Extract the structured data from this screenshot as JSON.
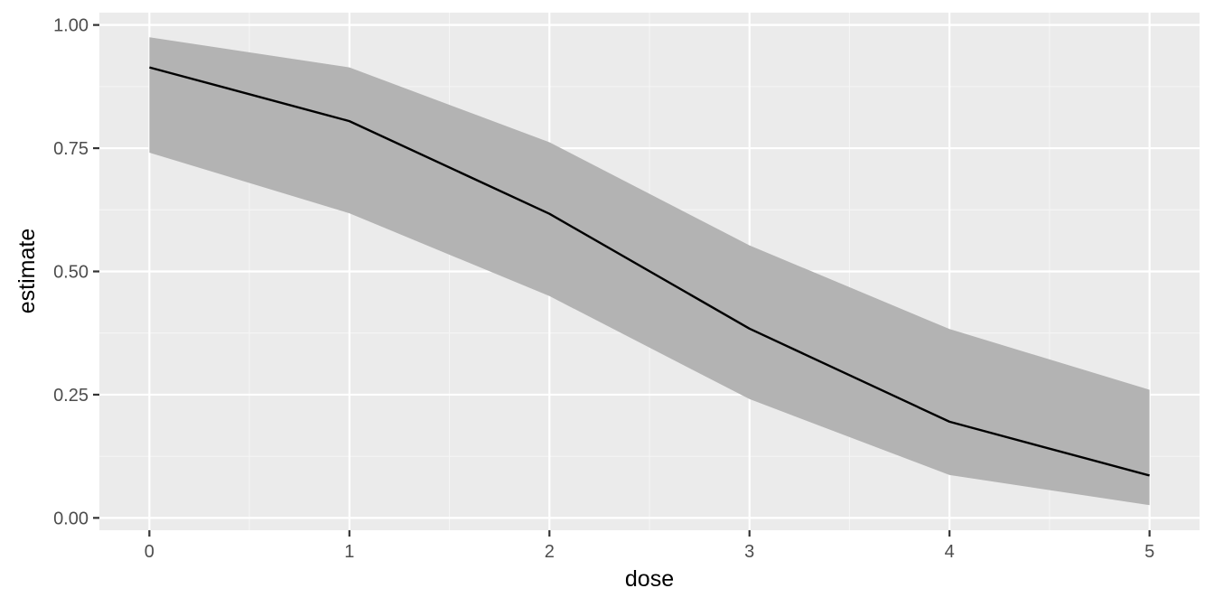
{
  "chart_data": {
    "type": "line",
    "title": "",
    "xlabel": "dose",
    "ylabel": "estimate",
    "x": [
      0,
      1,
      2,
      3,
      4,
      5
    ],
    "series": [
      {
        "values": [
          0.914,
          0.805,
          0.617,
          0.384,
          0.195,
          0.086
        ],
        "lower": [
          0.741,
          0.618,
          0.45,
          0.241,
          0.087,
          0.026
        ],
        "upper": [
          0.975,
          0.914,
          0.762,
          0.553,
          0.383,
          0.26
        ]
      }
    ],
    "xlim": [
      -0.25,
      5.25
    ],
    "ylim": [
      -0.025,
      1.025
    ],
    "x_ticks": [
      0,
      1,
      2,
      3,
      4,
      5
    ],
    "x_tick_labels": [
      "0",
      "1",
      "2",
      "3",
      "4",
      "5"
    ],
    "y_ticks": [
      0,
      0.25,
      0.5,
      0.75,
      1.0
    ],
    "y_tick_labels": [
      "0.00",
      "0.25",
      "0.50",
      "0.75",
      "1.00"
    ],
    "grid": true,
    "legend": "none",
    "colors": {
      "panel_background": "#ebebeb",
      "grid_major": "#ffffff",
      "grid_minor": "#f5f5f5",
      "ribbon": "#b3b3b3",
      "line": "#000000",
      "tick": "#333333",
      "tick_label": "#4d4d4d",
      "axis_title": "#000000"
    }
  }
}
